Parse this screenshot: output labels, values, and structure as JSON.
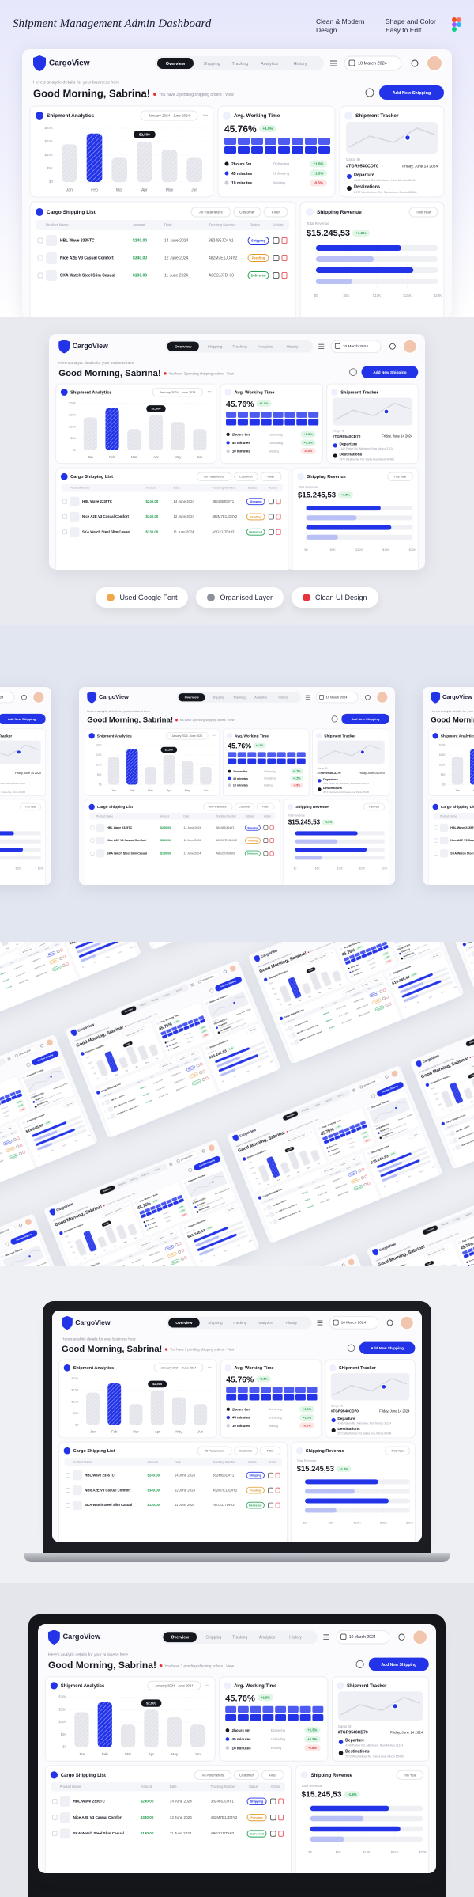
{
  "header": {
    "title": "Shipment Management Admin Dashboard",
    "features": [
      "Clean & Modern Design",
      "Shape and Color Easy to Edit"
    ]
  },
  "badges": [
    "Used Google Font",
    "Organised Layer",
    "Clean UI Design"
  ],
  "dashboard": {
    "logo": "CargoView",
    "nav": [
      "Overview",
      "Shipping",
      "Tracking",
      "Analytics",
      "History"
    ],
    "date": "10 March 2024",
    "subtitle": "Here's analytic details for your business here",
    "greeting": "Good Morning, Sabrina!",
    "notice": "You have 3 pending shipping orders · View",
    "add_button": "Add New Shipping",
    "analytics": {
      "title": "Shipment Analytics",
      "range": "January 2024 - June 2024",
      "categories": [
        "Jan",
        "Feb",
        "Mar",
        "Apr",
        "May",
        "Jun"
      ],
      "values": [
        14000,
        18000,
        9000,
        15000,
        12000,
        9000
      ],
      "colors": [
        "#e4e5eb",
        "#2233e8",
        "#e4e5eb",
        "#e4e5eb",
        "#e4e5eb",
        "#e4e5eb"
      ],
      "ylim": [
        0,
        20000
      ],
      "yticks": [
        {
          "value": 0,
          "label": "$0"
        },
        {
          "value": 5000,
          "label": "$5K"
        },
        {
          "value": 10000,
          "label": "$10K"
        },
        {
          "value": 15000,
          "label": "$15K"
        },
        {
          "value": 20000,
          "label": "$20K"
        }
      ],
      "grid": true,
      "annotation": "$2,500"
    },
    "working_time": {
      "title": "Avg. Working Time",
      "value": "45.76%",
      "change": "+1.5%",
      "items": [
        {
          "label": "2hours 6m",
          "status": "Delivering",
          "change": "+1.5%",
          "color": "#15171f"
        },
        {
          "label": "45 minutes",
          "status": "Unloading",
          "change": "+1.5%",
          "color": "#2233e8"
        },
        {
          "label": "10 minutes",
          "status": "Waiting",
          "change": "-0.5%",
          "color": "#c9ccd8"
        }
      ]
    },
    "tracker": {
      "title": "Shipment Tracker",
      "cargo_label": "Cargo ID",
      "cargo_id": "#TGR9540CD70",
      "date": "Friday, June 14 2024",
      "departure": "Departure",
      "departure_address": "4140 Parker Rd. Allentown, New Mexico 31134",
      "destination": "Destinations",
      "destination_address": "2972 Westheimer Rd. Santa Ana, Illinois 85486"
    },
    "shipping_list": {
      "title": "Cargo Shipping List",
      "filters": [
        "All Parameters",
        "Customer",
        "Filter"
      ],
      "columns": [
        "Product Name",
        "Amount",
        "Date",
        "Tracking Number",
        "Status",
        "Action"
      ],
      "rows": [
        [
          "HBL Wave 2335TC",
          "$240.00",
          "14 June 2024",
          "382485JD4Y1",
          "Shipping"
        ],
        [
          "Nice A2E V3 Casual Comfort",
          "$340.00",
          "12 June 2024",
          "482M7E1JD4Y2",
          "Pending"
        ],
        [
          "SKA Watch Steel Slim Casual",
          "$130.00",
          "11 June 2024",
          "A8G2JJ7DHI3",
          "Delivered"
        ]
      ],
      "status_colors": [
        "#2233e8",
        "#e39a2d",
        "#1fa355"
      ]
    },
    "revenue": {
      "title": "Shipping Revenue",
      "period": "This Year",
      "label": "Total Revenue",
      "total": "$15.245,53",
      "change": "+1.5%",
      "values": [
        14000,
        9500,
        16000,
        6000
      ],
      "colors": [
        "#2233e8",
        "#b9c0f6",
        "#2233e8",
        "#b9c0f6"
      ],
      "xlim": [
        0,
        20000
      ],
      "xticks": [
        {
          "value": 0,
          "label": "$0"
        },
        {
          "value": 5000,
          "label": "$5K"
        },
        {
          "value": 10000,
          "label": "$10K"
        },
        {
          "value": 15000,
          "label": "$15K"
        },
        {
          "value": 20000,
          "label": "$20K"
        }
      ]
    }
  }
}
